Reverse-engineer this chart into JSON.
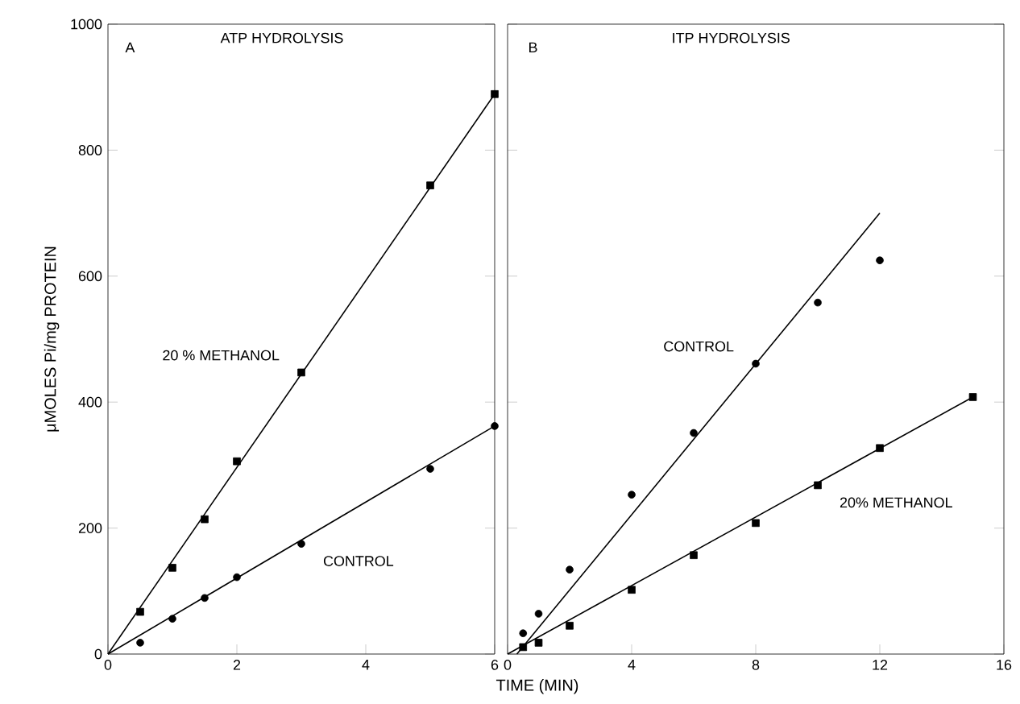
{
  "chart_data": [
    {
      "type": "scatter",
      "title": "ATP HYDROLYSIS",
      "annotations": [
        "A"
      ],
      "ylabel": "μMOLES Pi/mg PROTEIN",
      "xlim": [
        0,
        6
      ],
      "xticks": [
        0,
        2,
        4,
        6
      ],
      "ylim": [
        0,
        1000
      ],
      "yticks": [
        0,
        200,
        400,
        600,
        800,
        1000
      ],
      "series": [
        {
          "name": "20 % METHANOL",
          "color": "#000000",
          "marker": "square",
          "x": [
            0.5,
            1,
            1.5,
            2,
            3,
            5,
            6
          ],
          "values": [
            67,
            137,
            214,
            306,
            447,
            744,
            889
          ]
        },
        {
          "name": "CONTROL",
          "color": "#000000",
          "marker": "circle",
          "x": [
            0.5,
            1,
            1.5,
            2,
            3,
            5,
            6
          ],
          "values": [
            18,
            56,
            89,
            122,
            175,
            294,
            362
          ]
        },
        {
          "type": "line",
          "color": "#000000",
          "x": [
            0,
            6
          ],
          "values": [
            0,
            889
          ]
        },
        {
          "type": "line",
          "color": "#000000",
          "x": [
            0,
            6
          ],
          "values": [
            0,
            362
          ]
        }
      ]
    },
    {
      "type": "scatter",
      "title": "ITP HYDROLYSIS",
      "annotations": [
        "B"
      ],
      "xlabel": "TIME (MIN)",
      "xlim": [
        0,
        16
      ],
      "xticks": [
        0,
        4,
        8,
        12,
        16
      ],
      "ylim": [
        0,
        1000
      ],
      "yticks": [
        0,
        200,
        400,
        600,
        800,
        1000
      ],
      "tick_labels": "x",
      "series": [
        {
          "name": "CONTROL",
          "color": "#000000",
          "marker": "circle",
          "x": [
            0.5,
            1,
            2,
            4,
            6,
            8,
            10,
            12
          ],
          "values": [
            33,
            64,
            134,
            253,
            351,
            461,
            558,
            625
          ]
        },
        {
          "name": "20% METHANOL",
          "color": "#000000",
          "marker": "square",
          "x": [
            0.5,
            1,
            2,
            4,
            6,
            8,
            10,
            12,
            15
          ],
          "values": [
            11,
            18,
            45,
            102,
            157,
            208,
            268,
            327,
            408
          ]
        },
        {
          "type": "line",
          "color": "#000000",
          "x": [
            0.3,
            12
          ],
          "values": [
            0,
            700
          ]
        },
        {
          "type": "line",
          "color": "#000000",
          "x": [
            0,
            15
          ],
          "values": [
            0,
            408
          ]
        }
      ]
    }
  ]
}
